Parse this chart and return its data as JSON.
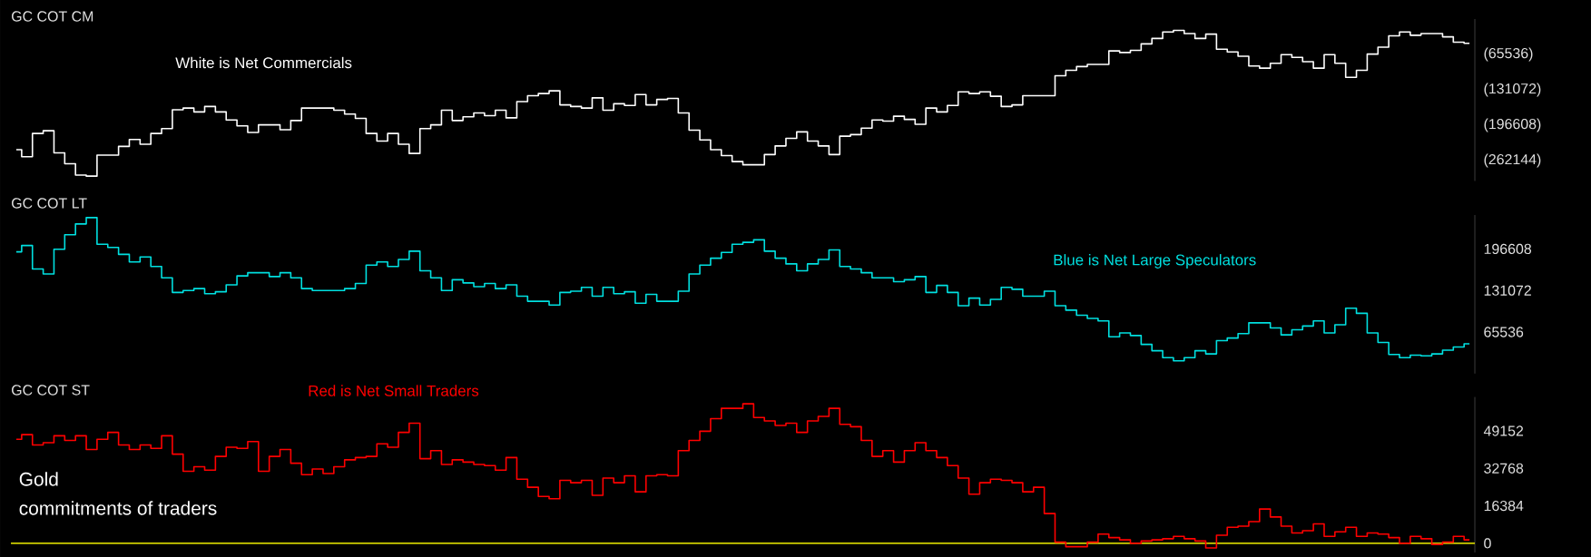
{
  "chart_data": [
    {
      "type": "step",
      "title": "GC COT CM",
      "annotations": [
        "White is Net Commercials"
      ],
      "color": "#ffffff",
      "tick_labels": "y",
      "categories": [
        null,
        null,
        null,
        null,
        null,
        null,
        null,
        null,
        null,
        null,
        null,
        null,
        null,
        null,
        null,
        null,
        null,
        null,
        null,
        null,
        null,
        null,
        null,
        null,
        null,
        null,
        null,
        null,
        null,
        null,
        null,
        null,
        null,
        null,
        null,
        null,
        null,
        null,
        null,
        null,
        null,
        null,
        null,
        null,
        null,
        null,
        null,
        null,
        null,
        null,
        null,
        null,
        null,
        null,
        null,
        null,
        null,
        null,
        null,
        null,
        null,
        null,
        null,
        null,
        null,
        null,
        null,
        null,
        null,
        null,
        null,
        null,
        null,
        null,
        null,
        null,
        null,
        null,
        null,
        null,
        null,
        null,
        null,
        null,
        null,
        null,
        null,
        null,
        null,
        null,
        null,
        null,
        null,
        null,
        null,
        null,
        null,
        null,
        null,
        null,
        null,
        null,
        null,
        null,
        null,
        null,
        null,
        null,
        null,
        null,
        null,
        null,
        null,
        null,
        null,
        null,
        null,
        null,
        null,
        null,
        null,
        null,
        null,
        null,
        null,
        null,
        null,
        null,
        null,
        null,
        null,
        null,
        null,
        null,
        null,
        null
      ],
      "values": [
        -242000,
        -255000,
        -212000,
        -207000,
        -248000,
        -268000,
        -289000,
        -291000,
        -252000,
        -252000,
        -236000,
        -223000,
        -232000,
        -212000,
        -203000,
        -168000,
        -165000,
        -172000,
        -162000,
        -172000,
        -187000,
        -198000,
        -210000,
        -196000,
        -196000,
        -205000,
        -188000,
        -165000,
        -165000,
        -165000,
        -169000,
        -176000,
        -184000,
        -212000,
        -226000,
        -212000,
        -232000,
        -249000,
        -203000,
        -196000,
        -169000,
        -188000,
        -181000,
        -174000,
        -179000,
        -169000,
        -183000,
        -153000,
        -142000,
        -138000,
        -133000,
        -159000,
        -162000,
        -165000,
        -146000,
        -169000,
        -157000,
        -160000,
        -140000,
        -159000,
        -149000,
        -147000,
        -174000,
        -206000,
        -224000,
        -242000,
        -253000,
        -264000,
        -270000,
        -270000,
        -251000,
        -235000,
        -221000,
        -209000,
        -226000,
        -235000,
        -251000,
        -217000,
        -214000,
        -202000,
        -187000,
        -189000,
        -180000,
        -186000,
        -195000,
        -165000,
        -172000,
        -160000,
        -135000,
        -138000,
        -135000,
        -143000,
        -162000,
        -159000,
        -142000,
        -142000,
        -142000,
        -105000,
        -95000,
        -88000,
        -84000,
        -84000,
        -59000,
        -62000,
        -58000,
        -46000,
        -36000,
        -24000,
        -21000,
        -27000,
        -36000,
        -28000,
        -56000,
        -61000,
        -69000,
        -87000,
        -91000,
        -82000,
        -66000,
        -71000,
        -79000,
        -91000,
        -66000,
        -82000,
        -108000,
        -95000,
        -65000,
        -52000,
        -31000,
        -24000,
        -30000,
        -27000,
        -27000,
        -33000,
        -43000,
        -45000
      ],
      "ylim": [
        -300000,
        0
      ],
      "yticks": [
        {
          "value": -65536,
          "label": "(65536)"
        },
        {
          "value": -131072,
          "label": "(131072)"
        },
        {
          "value": -196608,
          "label": "(196608)"
        },
        {
          "value": -262144,
          "label": "(262144)"
        }
      ]
    },
    {
      "type": "step",
      "title": "GC COT LT",
      "annotations": [
        "Blue is Net Large Speculators"
      ],
      "color": "#00e0e0",
      "tick_labels": "y",
      "categories": [
        null,
        null,
        null,
        null,
        null,
        null,
        null,
        null,
        null,
        null,
        null,
        null,
        null,
        null,
        null,
        null,
        null,
        null,
        null,
        null,
        null,
        null,
        null,
        null,
        null,
        null,
        null,
        null,
        null,
        null,
        null,
        null,
        null,
        null,
        null,
        null,
        null,
        null,
        null,
        null,
        null,
        null,
        null,
        null,
        null,
        null,
        null,
        null,
        null,
        null,
        null,
        null,
        null,
        null,
        null,
        null,
        null,
        null,
        null,
        null,
        null,
        null,
        null,
        null,
        null,
        null,
        null,
        null,
        null,
        null,
        null,
        null,
        null,
        null,
        null,
        null,
        null,
        null,
        null,
        null,
        null,
        null,
        null,
        null,
        null,
        null,
        null,
        null,
        null,
        null,
        null,
        null,
        null,
        null,
        null,
        null,
        null,
        null,
        null,
        null,
        null,
        null,
        null,
        null,
        null,
        null,
        null,
        null,
        null,
        null,
        null,
        null,
        null,
        null,
        null,
        null,
        null,
        null,
        null,
        null,
        null,
        null,
        null,
        null,
        null,
        null,
        null,
        null,
        null,
        null,
        null,
        null,
        null,
        null,
        null,
        null
      ],
      "values": [
        192000,
        202000,
        165000,
        157000,
        196000,
        219000,
        236000,
        246000,
        204000,
        199000,
        188000,
        176000,
        184000,
        169000,
        151000,
        128000,
        131000,
        134000,
        126000,
        129000,
        140000,
        154000,
        159000,
        159000,
        153000,
        159000,
        151000,
        134000,
        131000,
        131000,
        131000,
        134000,
        142000,
        171000,
        176000,
        169000,
        180000,
        193000,
        162000,
        151000,
        131000,
        148000,
        143000,
        137000,
        142000,
        134000,
        140000,
        122000,
        114000,
        114000,
        108000,
        128000,
        130000,
        136000,
        122000,
        136000,
        126000,
        129000,
        111000,
        125000,
        114000,
        114000,
        130000,
        157000,
        171000,
        182000,
        191000,
        204000,
        207000,
        211000,
        193000,
        182000,
        173000,
        162000,
        173000,
        180000,
        195000,
        169000,
        165000,
        159000,
        151000,
        151000,
        145000,
        148000,
        153000,
        128000,
        139000,
        128000,
        107000,
        119000,
        108000,
        117000,
        136000,
        133000,
        122000,
        122000,
        130000,
        107000,
        100000,
        92000,
        87000,
        83000,
        58000,
        64000,
        60000,
        46000,
        36000,
        25000,
        20000,
        25000,
        36000,
        31000,
        52000,
        56000,
        63000,
        80000,
        80000,
        72000,
        61000,
        69000,
        75000,
        83000,
        64000,
        77000,
        103000,
        95000,
        64000,
        49000,
        30000,
        25000,
        29000,
        28000,
        31000,
        37000,
        42000,
        47000
      ],
      "ylim": [
        0,
        250000
      ],
      "yticks": [
        65536,
        131072,
        196608
      ]
    },
    {
      "type": "step",
      "title": "GC COT ST",
      "annotations": [
        "Red is Net Small Traders",
        "Gold",
        "commitments of traders"
      ],
      "color": "#ff0000",
      "tick_labels": "y",
      "categories": [
        null,
        null,
        null,
        null,
        null,
        null,
        null,
        null,
        null,
        null,
        null,
        null,
        null,
        null,
        null,
        null,
        null,
        null,
        null,
        null,
        null,
        null,
        null,
        null,
        null,
        null,
        null,
        null,
        null,
        null,
        null,
        null,
        null,
        null,
        null,
        null,
        null,
        null,
        null,
        null,
        null,
        null,
        null,
        null,
        null,
        null,
        null,
        null,
        null,
        null,
        null,
        null,
        null,
        null,
        null,
        null,
        null,
        null,
        null,
        null,
        null,
        null,
        null,
        null,
        null,
        null,
        null,
        null,
        null,
        null,
        null,
        null,
        null,
        null,
        null,
        null,
        null,
        null,
        null,
        null,
        null,
        null,
        null,
        null,
        null,
        null,
        null,
        null,
        null,
        null,
        null,
        null,
        null,
        null,
        null,
        null,
        null,
        null,
        null,
        null,
        null,
        null,
        null,
        null,
        null,
        null,
        null,
        null,
        null,
        null,
        null,
        null,
        null,
        null,
        null,
        null,
        null,
        null,
        null,
        null,
        null,
        null,
        null,
        null,
        null,
        null,
        null,
        null,
        null,
        null,
        null,
        null,
        null,
        null,
        null,
        null
      ],
      "values": [
        45500,
        47500,
        43000,
        44000,
        47000,
        45000,
        47000,
        41000,
        45500,
        48500,
        43000,
        41000,
        43000,
        41500,
        47000,
        39000,
        31500,
        33500,
        32000,
        38000,
        42000,
        41500,
        44500,
        31500,
        38000,
        41000,
        35000,
        30000,
        32500,
        30500,
        33500,
        36500,
        37500,
        38000,
        43500,
        42000,
        48500,
        52500,
        37000,
        40500,
        34500,
        36500,
        35500,
        34500,
        34000,
        32000,
        37500,
        28000,
        24500,
        20500,
        19500,
        27500,
        26500,
        27500,
        21000,
        28500,
        26500,
        29500,
        22500,
        29500,
        30000,
        29500,
        40500,
        45000,
        49000,
        54500,
        59000,
        59000,
        61000,
        55000,
        53500,
        51500,
        52500,
        48500,
        53500,
        55500,
        59000,
        52000,
        51000,
        45000,
        38000,
        40500,
        35500,
        40500,
        44000,
        40500,
        37500,
        34000,
        28500,
        21500,
        26500,
        28000,
        27500,
        26500,
        22500,
        24500,
        13000,
        500,
        -1500,
        -1500,
        500,
        4000,
        2500,
        1500,
        0,
        1000,
        1500,
        2000,
        3000,
        2000,
        1000,
        -2000,
        3500,
        7000,
        7500,
        9500,
        15000,
        11500,
        7500,
        4500,
        5500,
        8500,
        3000,
        5000,
        7000,
        3000,
        4500,
        4000,
        2500,
        0,
        3000,
        2000,
        -500,
        500,
        3000,
        1500
      ],
      "ylim": [
        -4000,
        64000
      ],
      "yticks": [
        0,
        16384,
        32768,
        49152
      ],
      "ref_lines": [
        {
          "axis": "y",
          "value": 0,
          "color": "#cccc00"
        }
      ]
    }
  ]
}
